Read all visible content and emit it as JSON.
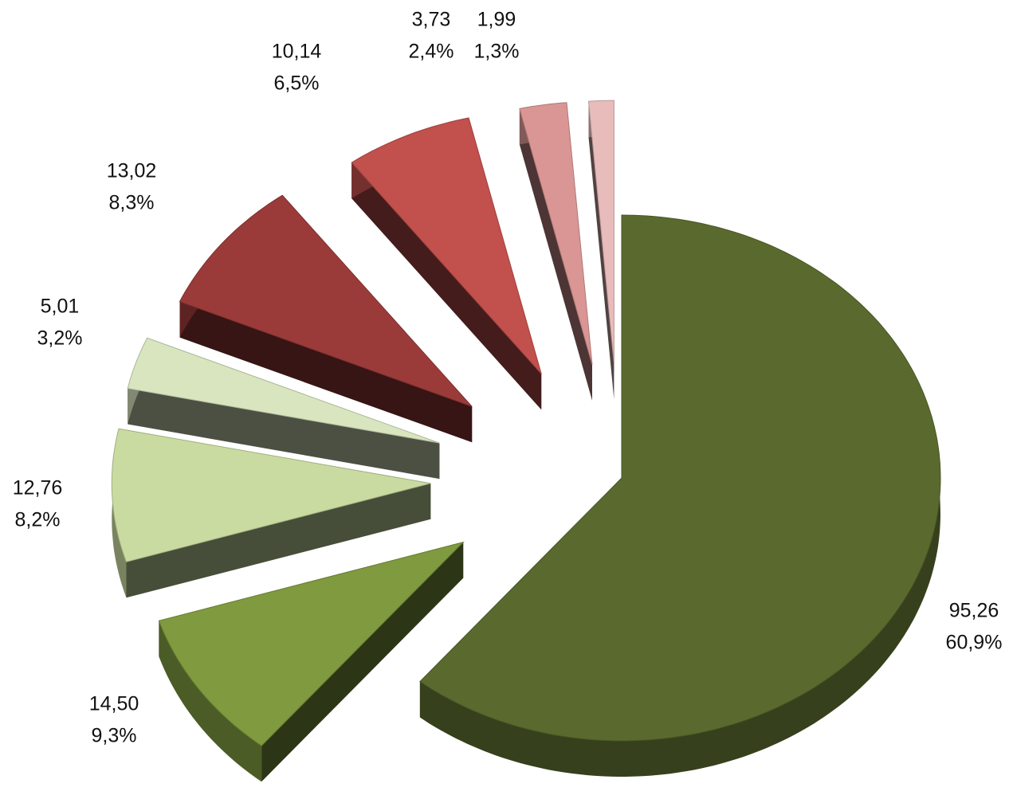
{
  "chart_data": {
    "type": "pie",
    "values": [
      95.26,
      14.5,
      12.76,
      5.01,
      13.02,
      10.14,
      3.73,
      1.99
    ],
    "value_labels": [
      "95,26",
      "14,50",
      "12,76",
      "5,01",
      "13,02",
      "10,14",
      "3,73",
      "1,99"
    ],
    "percent_labels": [
      "60,9%",
      "9,3%",
      "8,2%",
      "3,2%",
      "8,3%",
      "6,5%",
      "2,4%",
      "1,3%"
    ],
    "colors": [
      "#5a6a2e",
      "#7f9a3f",
      "#c9dba0",
      "#d8e5bf",
      "#9b3b39",
      "#c2504d",
      "#d99694",
      "#e7bcbb"
    ]
  }
}
